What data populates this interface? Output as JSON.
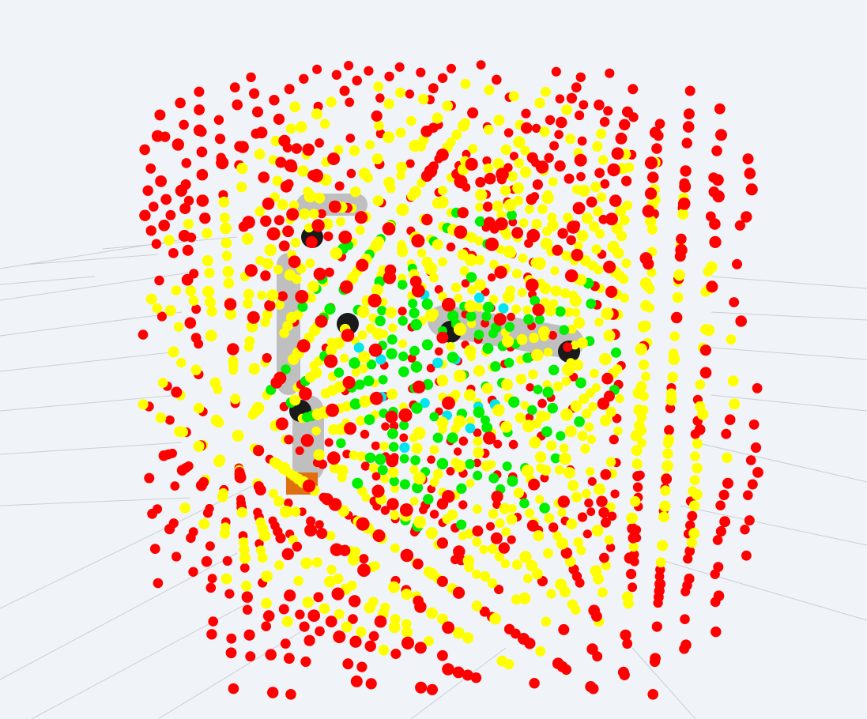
{
  "viewer": {
    "background_color": "#f0f4f8",
    "grid_line_color": "#c9cfd6",
    "grid": "visible",
    "view": "3d-perspective"
  },
  "point_cloud": {
    "shape": "cube",
    "marker_colors": {
      "outer": "#ff0000",
      "mid": "#ffff00",
      "inner": "#00ee00",
      "core": "#00e5ee"
    }
  },
  "robot_model": {
    "colors": {
      "link": "#bfbfbf",
      "joint": "#1a1a1a",
      "base": "#e0700f"
    }
  }
}
